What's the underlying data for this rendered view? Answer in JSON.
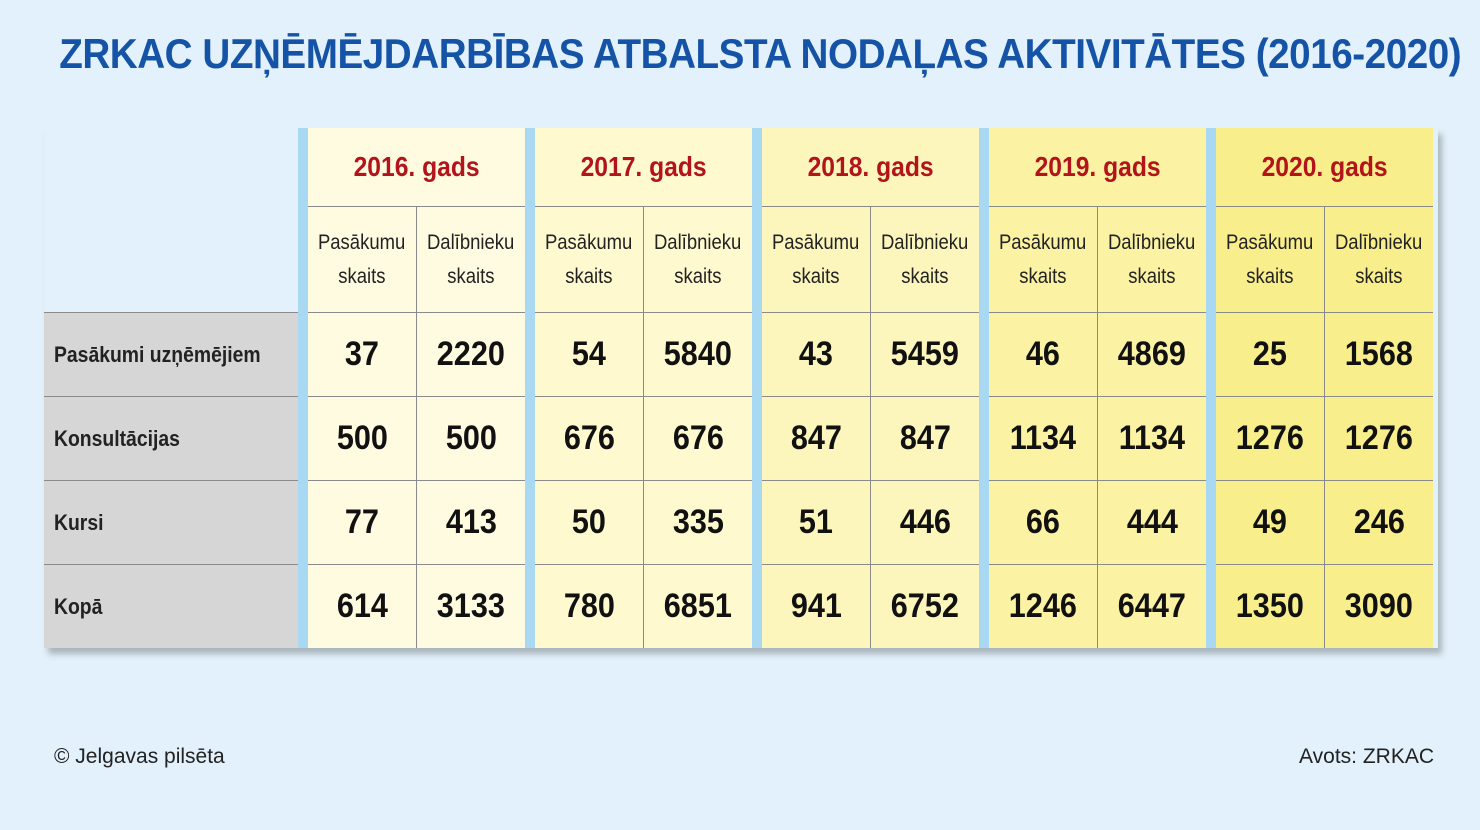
{
  "title": "ZRKAC UZŅĒMĒJDARBĪBAS ATBALSTA NODAĻAS AKTIVITĀTES (2016-2020)",
  "footer": {
    "copyright": "© Jelgavas pilsēta",
    "source": "Avots: ZRKAC"
  },
  "colors": {
    "background": "#e2f1fb",
    "title": "#1553a6",
    "year_heading": "#b3141c",
    "row_label_bg": "#d6d6d6",
    "separator": "#a9d8f3",
    "year_bg": [
      "#fffbe0",
      "#fef9cf",
      "#fcf6bd",
      "#fbf2a4",
      "#f9ee8c"
    ]
  },
  "chart_data": {
    "type": "table",
    "title": "ZRKAC UZŅĒMĒJDARBĪBAS ATBALSTA NODAĻAS AKTIVITĀTES (2016-2020)",
    "subcolumns": [
      [
        "Pasākumu",
        "skaits"
      ],
      [
        "Dalībnieku",
        "skaits"
      ]
    ],
    "years": [
      "2016. gads",
      "2017. gads",
      "2018. gads",
      "2019. gads",
      "2020. gads"
    ],
    "rows": [
      {
        "label": "Pasākumi uzņēmējiem",
        "values": [
          [
            "37",
            "2220"
          ],
          [
            "54",
            "5840"
          ],
          [
            "43",
            "5459"
          ],
          [
            "46",
            "4869"
          ],
          [
            "25",
            "1568"
          ]
        ]
      },
      {
        "label": "Konsultācijas",
        "values": [
          [
            "500",
            "500"
          ],
          [
            "676",
            "676"
          ],
          [
            "847",
            "847"
          ],
          [
            "1134",
            "1134"
          ],
          [
            "1276",
            "1276"
          ]
        ]
      },
      {
        "label": "Kursi",
        "values": [
          [
            "77",
            "413"
          ],
          [
            "50",
            "335"
          ],
          [
            "51",
            "446"
          ],
          [
            "66",
            "444"
          ],
          [
            "49",
            "246"
          ]
        ]
      },
      {
        "label": "Kopā",
        "values": [
          [
            "614",
            "3133"
          ],
          [
            "780",
            "6851"
          ],
          [
            "941",
            "6752"
          ],
          [
            "1246",
            "6447"
          ],
          [
            "1350",
            "3090"
          ]
        ]
      }
    ]
  }
}
